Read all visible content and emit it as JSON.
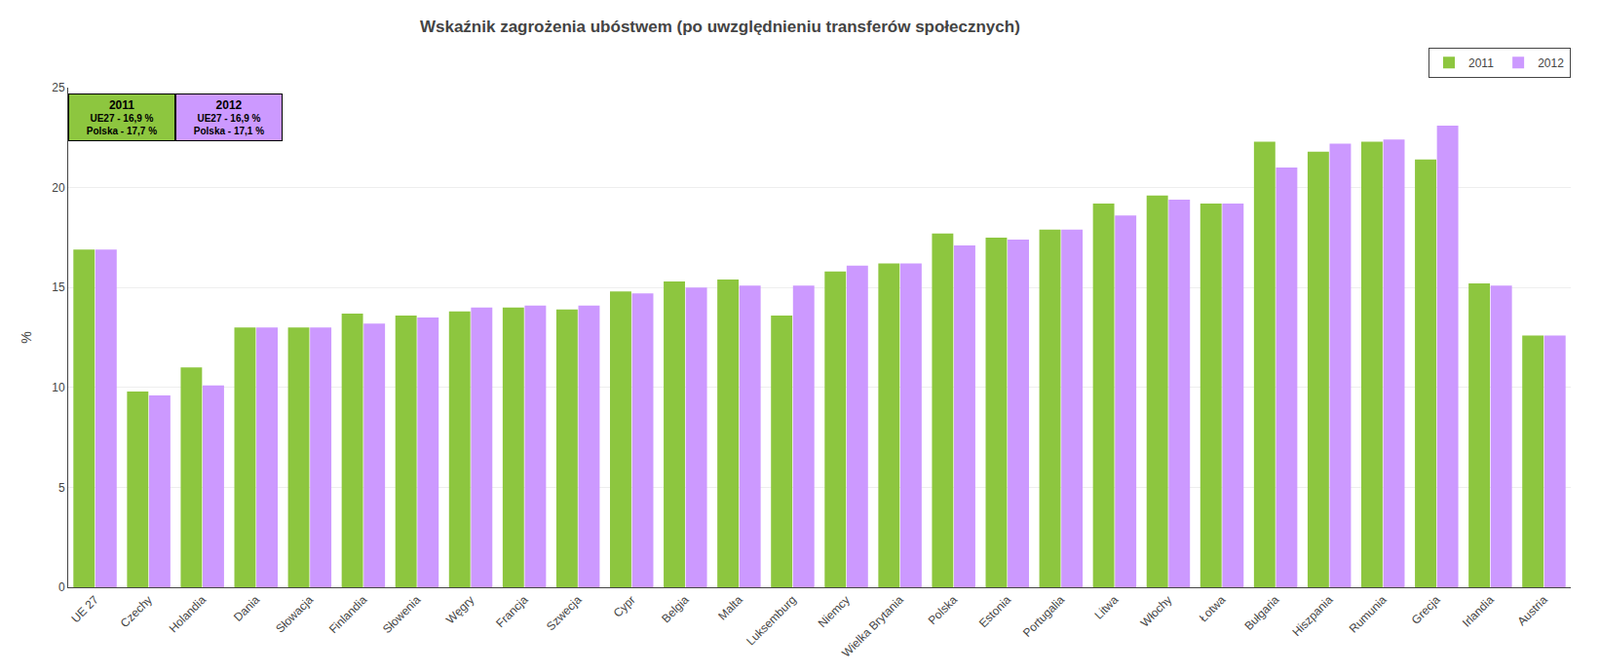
{
  "chart_data": {
    "type": "bar",
    "title": "Wskaźnik zagrożenia ubóstwem (po uwzględnieniu transferów społecznych)",
    "y_label": "%",
    "categories": [
      "UE 27",
      "Czechy",
      "Holandia",
      "Dania",
      "Słowacja",
      "Finlandia",
      "Słowenia",
      "Węgry",
      "Francja",
      "Szwecja",
      "Cypr",
      "Belgia",
      "Malta",
      "Luksemburg",
      "Niemcy",
      "Wielka Brytania",
      "Polska",
      "Estonia",
      "Portugalia",
      "Litwa",
      "Włochy",
      "Łotwa",
      "Bułgaria",
      "Hiszpania",
      "Rumunia",
      "Grecja",
      "Irlandia",
      "Austria"
    ],
    "series": [
      {
        "name": "2011",
        "color": "#8dc63f",
        "values": [
          16.9,
          9.8,
          11.0,
          13.0,
          13.0,
          13.7,
          13.6,
          13.8,
          14.0,
          13.9,
          14.8,
          15.3,
          15.4,
          13.6,
          15.8,
          16.2,
          17.7,
          17.5,
          17.9,
          19.2,
          19.6,
          19.2,
          22.3,
          21.8,
          22.3,
          21.4,
          15.2,
          12.6
        ]
      },
      {
        "name": "2012",
        "color": "#cc99ff",
        "values": [
          16.9,
          9.6,
          10.1,
          13.0,
          13.0,
          13.2,
          13.5,
          14.0,
          14.1,
          14.1,
          14.7,
          15.0,
          15.1,
          15.1,
          16.1,
          16.2,
          17.1,
          17.4,
          17.9,
          18.6,
          19.4,
          19.2,
          21.0,
          22.2,
          22.4,
          23.1,
          15.1,
          12.6
        ]
      }
    ],
    "annotations": [
      {
        "text": [
          "2011",
          "UE27 - 16,9 %",
          "Polska - 17,7 %"
        ],
        "color": "#8dc63f"
      },
      {
        "text": [
          "2012",
          "UE27 - 16,9 %",
          "Polska - 17,1 %"
        ],
        "color": "#cc99ff"
      }
    ],
    "ylim": [
      0,
      25
    ],
    "yticks": [
      0,
      5,
      10,
      15,
      20,
      25
    ],
    "grid": true,
    "legend": "upper right"
  }
}
